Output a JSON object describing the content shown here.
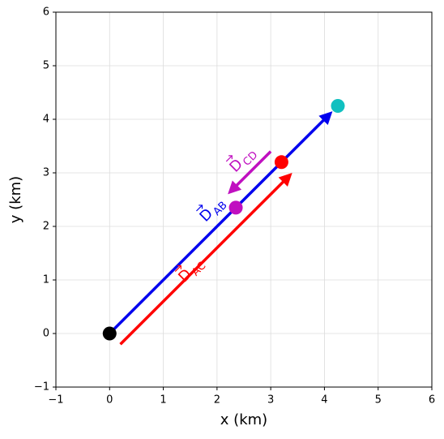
{
  "chart_data": {
    "type": "scatter",
    "xlabel": "x (km)",
    "ylabel": "y (km)",
    "xlim": [
      -1,
      6
    ],
    "ylim": [
      -1,
      6
    ],
    "xticks": [
      {
        "value": -1,
        "label": "−1"
      },
      0,
      1,
      2,
      3,
      4,
      5,
      6
    ],
    "yticks": [
      {
        "value": -1,
        "label": "−1"
      },
      0,
      1,
      2,
      3,
      4,
      5,
      6
    ],
    "grid": true,
    "points": {
      "x": [
        0,
        2.35,
        3.2,
        4.25
      ],
      "y": [
        0,
        2.35,
        3.2,
        4.25
      ],
      "colors": [
        "#000000",
        "#c010c0",
        "#ff0000",
        "#10c0c0"
      ]
    },
    "arrows": [
      {
        "x0": 0,
        "y0": 0,
        "x1": 4.15,
        "y1": 4.15,
        "color": "#0000ee",
        "label": {
          "symbol": "D",
          "subscript": "AB"
        }
      },
      {
        "x0": 0.2,
        "y0": -0.2,
        "x1": 3.4,
        "y1": 3.0,
        "color": "#ff0000",
        "label": {
          "symbol": "D",
          "subscript": "AC"
        }
      },
      {
        "x0": 3.0,
        "y0": 3.4,
        "x1": 2.2,
        "y1": 2.6,
        "color": "#c010c0",
        "label": {
          "symbol": "D",
          "subscript": "CD"
        }
      }
    ]
  }
}
